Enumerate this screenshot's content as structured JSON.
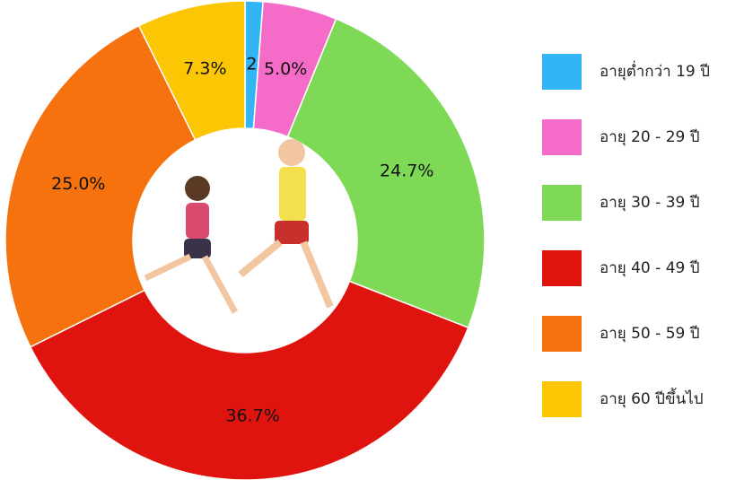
{
  "chart_data": {
    "type": "donut",
    "categories": [
      "อายุต่ำกว่า 19 ปี",
      "อายุ 20 - 29 ปี",
      "อายุ 30 - 39 ปี",
      "อายุ 40 - 49 ปี",
      "อายุ 50 - 59 ปี",
      "อายุ 60 ปีขึ้นไป"
    ],
    "values": [
      1.2,
      5.0,
      24.7,
      36.7,
      25.0,
      7.3
    ],
    "value_labels": [
      "1.2%",
      "5.0%",
      "24.7%",
      "36.7%",
      "25.0%",
      "7.3%"
    ],
    "colors": [
      "#33b5f5",
      "#f56cc8",
      "#7ed957",
      "#e0140e",
      "#f5720f",
      "#fbc704"
    ],
    "legend": "right"
  }
}
